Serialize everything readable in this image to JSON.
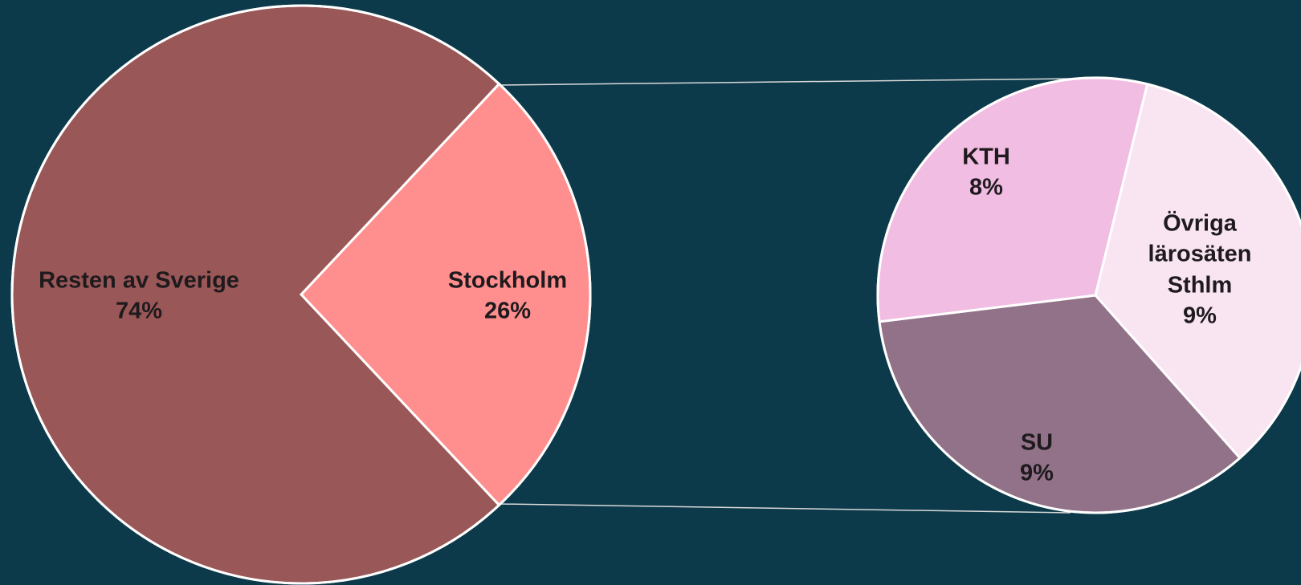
{
  "chart_data": [
    {
      "type": "pie",
      "categories": [
        "Stockholm",
        "Resten av Sverige"
      ],
      "values": [
        26,
        74
      ],
      "value_labels": [
        "26%",
        "74%"
      ],
      "colors": [
        "#ff8f8f",
        "#9a5757"
      ]
    },
    {
      "type": "pie",
      "categories": [
        "Övriga lärosäten Sthlm",
        "SU",
        "KTH"
      ],
      "values": [
        9,
        9,
        8
      ],
      "value_labels": [
        "9%",
        "9%",
        "8%"
      ],
      "colors": [
        "#f9e4f2",
        "#927289",
        "#f2bde3"
      ]
    }
  ]
}
